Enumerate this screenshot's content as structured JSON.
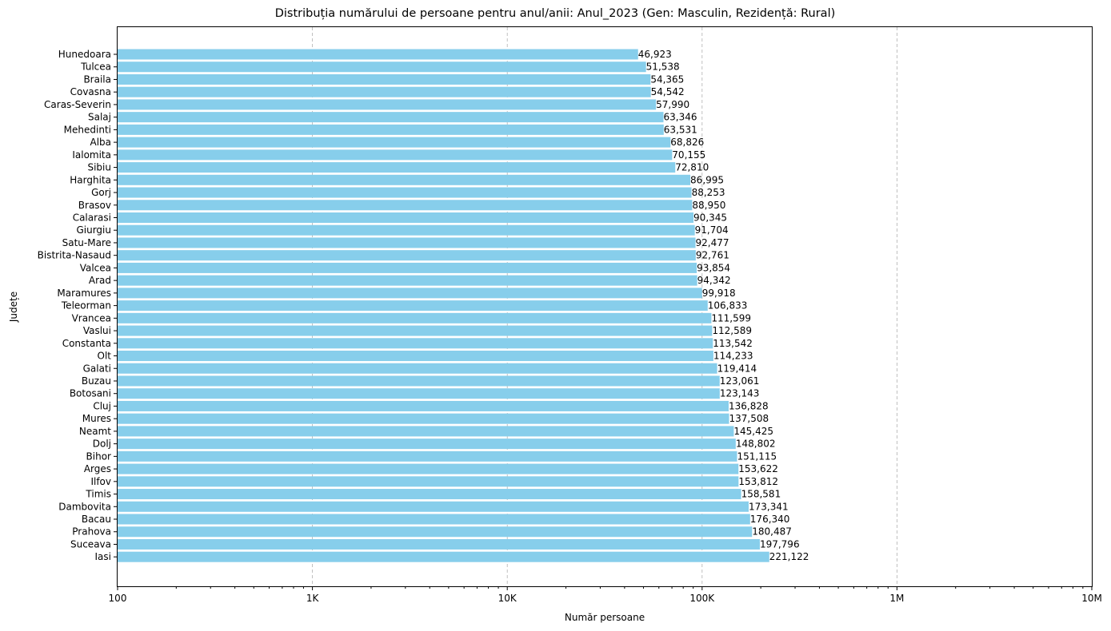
{
  "chart_data": {
    "type": "bar",
    "orientation": "horizontal",
    "title": "Distribuția numărului de persoane pentru anul/anii: Anul_2023 (Gen: Masculin, Rezidență: Rural)",
    "xlabel": "Număr persoane",
    "ylabel": "Județe",
    "xscale": "log",
    "xlim": [
      100,
      10000000
    ],
    "xticks": [
      100,
      1000,
      10000,
      100000,
      1000000,
      10000000
    ],
    "xtick_labels": [
      "100",
      "1K",
      "10K",
      "100K",
      "1M",
      "10M"
    ],
    "grid": "x-major-dashed",
    "bar_color": "#87ceeb",
    "categories": [
      "Hunedoara",
      "Tulcea",
      "Braila",
      "Covasna",
      "Caras-Severin",
      "Salaj",
      "Mehedinti",
      "Alba",
      "Ialomita",
      "Sibiu",
      "Harghita",
      "Gorj",
      "Brasov",
      "Calarasi",
      "Giurgiu",
      "Satu-Mare",
      "Bistrita-Nasaud",
      "Valcea",
      "Arad",
      "Maramures",
      "Teleorman",
      "Vrancea",
      "Vaslui",
      "Constanta",
      "Olt",
      "Galati",
      "Buzau",
      "Botosani",
      "Cluj",
      "Mures",
      "Neamt",
      "Dolj",
      "Bihor",
      "Arges",
      "Ilfov",
      "Timis",
      "Dambovita",
      "Bacau",
      "Prahova",
      "Suceava",
      "Iasi"
    ],
    "values": [
      46923,
      51538,
      54365,
      54542,
      57990,
      63346,
      63531,
      68826,
      70155,
      72810,
      86995,
      88253,
      88950,
      90345,
      91704,
      92477,
      92761,
      93854,
      94342,
      99918,
      106833,
      111599,
      112589,
      113542,
      114233,
      119414,
      123061,
      123143,
      136828,
      137508,
      145425,
      148802,
      151115,
      153622,
      153812,
      158581,
      173341,
      176340,
      180487,
      197796,
      221122
    ],
    "value_labels": [
      "46,923",
      "51,538",
      "54,365",
      "54,542",
      "57,990",
      "63,346",
      "63,531",
      "68,826",
      "70,155",
      "72,810",
      "86,995",
      "88,253",
      "88,950",
      "90,345",
      "91,704",
      "92,477",
      "92,761",
      "93,854",
      "94,342",
      "99,918",
      "106,833",
      "111,599",
      "112,589",
      "113,542",
      "114,233",
      "119,414",
      "123,061",
      "123,143",
      "136,828",
      "137,508",
      "145,425",
      "148,802",
      "151,115",
      "153,622",
      "153,812",
      "158,581",
      "173,341",
      "176,340",
      "180,487",
      "197,796",
      "221,122"
    ]
  }
}
